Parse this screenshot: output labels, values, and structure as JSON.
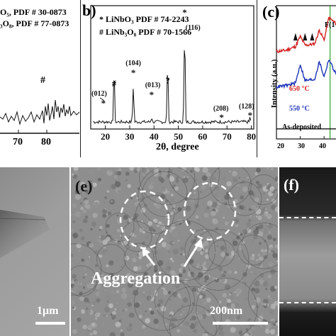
{
  "panel_a": {
    "legend_line1": "O₅, PDF # 30-0873",
    "legend_line2": "₃O₈, PDF # 77-0873",
    "peak_marker": "#",
    "x_ticks": [
      "70",
      "80"
    ]
  },
  "panel_b": {
    "label": "b)",
    "legend_line1": "* LiNbO₃ PDF # 74-2243",
    "legend_line2": "# LiNb₃O₈ PDF # 70-1566",
    "xlabel": "2θ, degree",
    "x_ticks": [
      "20",
      "30",
      "40",
      "50",
      "60",
      "70",
      "80"
    ],
    "peak_labels": [
      "(012)",
      "(104)",
      "(013)",
      "(116)",
      "(208)",
      "(128)"
    ],
    "markers": [
      "*",
      "#",
      "*",
      "*",
      "?",
      "*",
      "*",
      "*"
    ]
  },
  "panel_c": {
    "label": "(c)",
    "ylabel": "Intensity (a.u.)",
    "curves": [
      {
        "name": "650 °C",
        "color": "#d42020"
      },
      {
        "name": "550 °C",
        "color": "#1f35b8"
      },
      {
        "name": "As-deposited",
        "color": "#111111"
      }
    ],
    "f_label": "F(1",
    "x_ticks": [
      "20",
      "30",
      "40"
    ]
  },
  "panel_d": {
    "scale_bar": "1μm"
  },
  "panel_e": {
    "label": "(e)",
    "annotation": "Aggregation",
    "scale_bar": "200nm"
  },
  "panel_f": {
    "label": "(f)"
  },
  "chart_data": [
    {
      "type": "line",
      "panel": "b",
      "xlabel": "2θ, degree",
      "ylabel": "",
      "xlim": [
        14,
        81
      ],
      "series": [
        {
          "name": "",
          "x": [
            15,
            18,
            20,
            22,
            23.6,
            25,
            28,
            31.5,
            33,
            36,
            39,
            41,
            45.6,
            47,
            50,
            52.6,
            55,
            58,
            62,
            66,
            68,
            72,
            75,
            78,
            79.5
          ],
          "y": [
            6,
            6,
            7,
            6,
            58,
            7,
            6,
            40,
            8,
            6,
            12,
            6,
            65,
            6,
            7,
            95,
            7,
            6,
            6,
            6,
            9,
            6,
            6,
            6,
            13
          ]
        }
      ]
    },
    {
      "type": "line",
      "panel": "c",
      "ylabel": "Intensity (a.u.)",
      "xlim": [
        20,
        45
      ],
      "series": [
        {
          "name": "650 °C",
          "x": [
            20,
            24,
            28,
            30,
            32,
            36,
            38,
            40,
            42,
            45
          ],
          "y": [
            68,
            69,
            72,
            80,
            73,
            74,
            85,
            77,
            95,
            90
          ]
        },
        {
          "name": "550 °C",
          "x": [
            20,
            24,
            28,
            30,
            32,
            36,
            38,
            40,
            42,
            45
          ],
          "y": [
            40,
            41,
            43,
            58,
            45,
            46,
            60,
            48,
            62,
            50
          ]
        },
        {
          "name": "As-deposited",
          "x": [
            20,
            45
          ],
          "y": [
            8,
            8
          ]
        }
      ]
    }
  ]
}
